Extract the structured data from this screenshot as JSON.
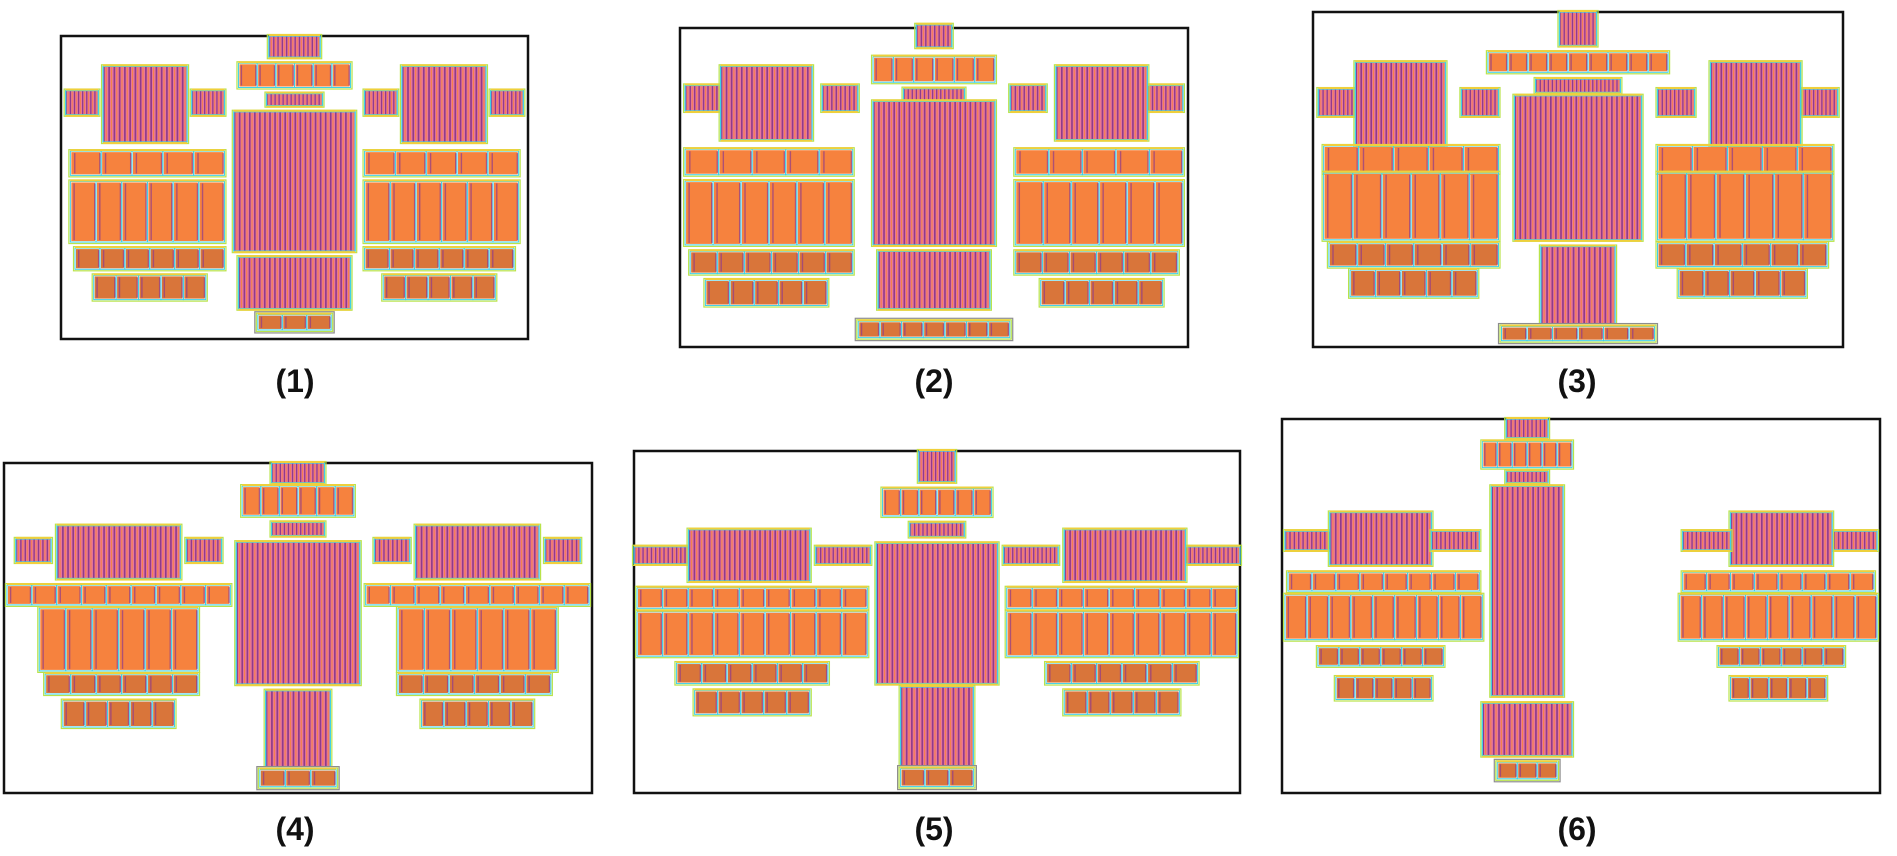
{
  "panels": [
    {
      "caption": "(1)",
      "variant": "compact"
    },
    {
      "caption": "(2)",
      "variant": "spread"
    },
    {
      "caption": "(3)",
      "variant": "tall-stem"
    },
    {
      "caption": "(4)",
      "variant": "wide-rows"
    },
    {
      "caption": "(5)",
      "variant": "blurred"
    },
    {
      "caption": "(6)",
      "variant": "long-center"
    }
  ],
  "colors": {
    "background": "#ffffff",
    "frame": "#111111",
    "block_fill": "#f6823e",
    "block_fill_dark": "#d9753a",
    "finger_purple": "#8f3b8c",
    "finger_pink": "#e9779a",
    "outline_cyan": "#3fd0e8",
    "outline_lime": "#b9e34a",
    "outline_yellow": "#f1cf3b",
    "outline_gray": "#8d8d8d"
  }
}
